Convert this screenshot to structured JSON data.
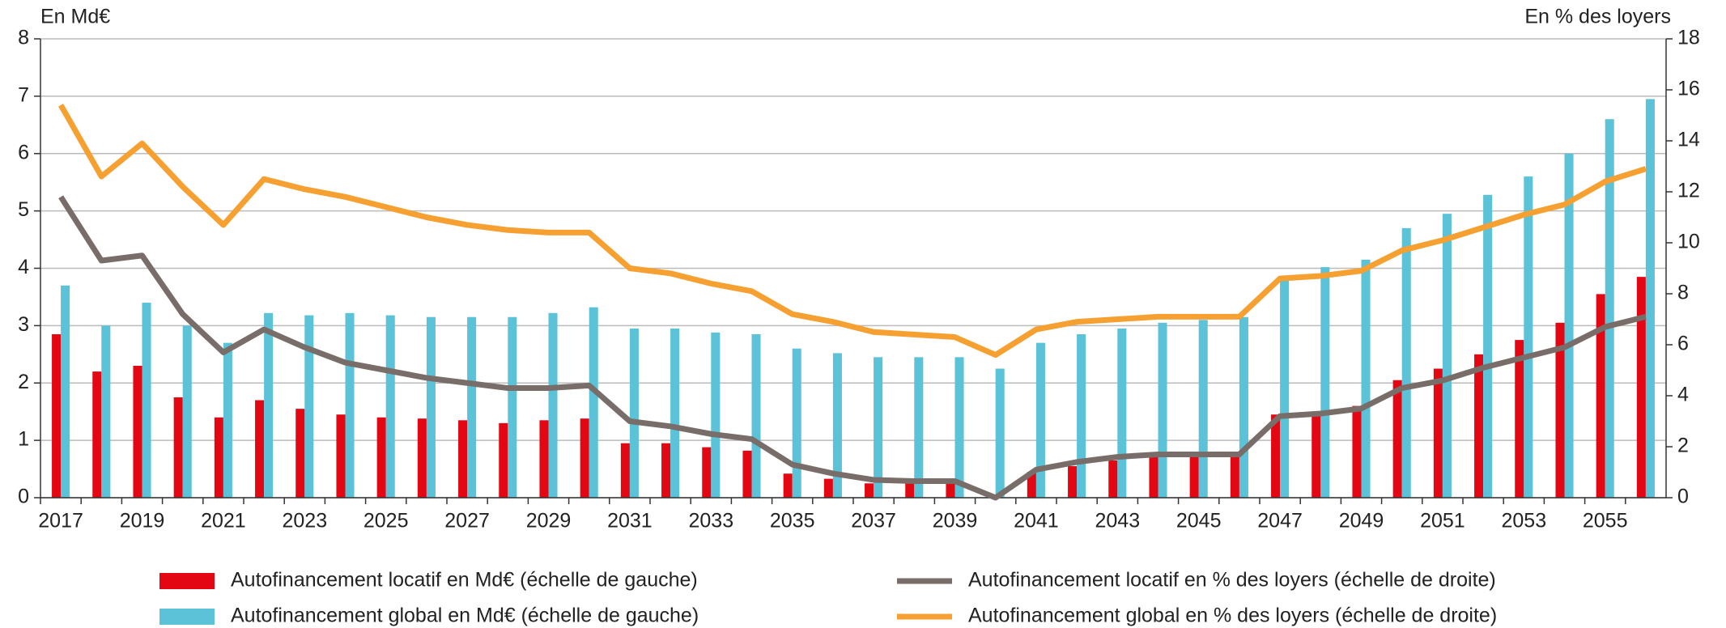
{
  "chart_data": {
    "type": "bar-line",
    "ylabel": "En Md€",
    "y2label": "En % des loyers",
    "categories": [
      "2017",
      null,
      "2019",
      null,
      "2021",
      null,
      "2023",
      null,
      "2025",
      null,
      "2027",
      null,
      "2029",
      null,
      "2031",
      null,
      "2033",
      null,
      "2035",
      null,
      "2037",
      null,
      "2039",
      null,
      "2041",
      null,
      "2043",
      null,
      "2045",
      null,
      "2047",
      null,
      "2049",
      null,
      "2051",
      null,
      "2053",
      null,
      "2055",
      null
    ],
    "series": [
      {
        "name": "Autofinancement locatif en Md€ (échelle de gauche)",
        "type": "bar",
        "color": "#e30613",
        "values": [
          2.85,
          2.2,
          2.3,
          1.75,
          1.4,
          1.7,
          1.55,
          1.45,
          1.4,
          1.38,
          1.35,
          1.3,
          1.35,
          1.38,
          0.95,
          0.95,
          0.88,
          0.82,
          0.42,
          0.33,
          0.25,
          0.25,
          0.25,
          0.02,
          0.45,
          0.55,
          0.65,
          0.72,
          0.72,
          0.75,
          1.45,
          1.5,
          1.6,
          2.05,
          2.25,
          2.5,
          2.75,
          3.05,
          3.55,
          3.85
        ]
      },
      {
        "name": "Autofinancement global en Md€ (échelle de gauche)",
        "type": "bar",
        "color": "#5bc2d8",
        "values": [
          3.7,
          3.0,
          3.4,
          3.0,
          2.7,
          3.22,
          3.18,
          3.22,
          3.18,
          3.15,
          3.15,
          3.15,
          3.22,
          3.32,
          2.95,
          2.95,
          2.88,
          2.85,
          2.6,
          2.52,
          2.45,
          2.45,
          2.45,
          2.25,
          2.7,
          2.85,
          2.95,
          3.05,
          3.1,
          3.15,
          3.85,
          4.02,
          4.15,
          4.7,
          4.95,
          5.28,
          5.6,
          6.0,
          6.6,
          6.95
        ]
      },
      {
        "name": "Autofinancement locatif en  % des loyers (échelle de droite)",
        "type": "line",
        "axis": "y2",
        "color": "#786d69",
        "values": [
          11.8,
          9.3,
          9.5,
          7.2,
          5.7,
          6.6,
          5.9,
          5.3,
          5.0,
          4.7,
          4.5,
          4.3,
          4.3,
          4.4,
          3.0,
          2.8,
          2.5,
          2.3,
          1.3,
          0.95,
          0.7,
          0.65,
          0.65,
          0,
          1.1,
          1.4,
          1.6,
          1.7,
          1.7,
          1.7,
          3.2,
          3.3,
          3.5,
          4.3,
          4.6,
          5.1,
          5.5,
          5.9,
          6.7,
          7.1
        ]
      },
      {
        "name": "Autofinancement global en  % des loyers (échelle de droite)",
        "type": "line",
        "axis": "y2",
        "color": "#f5a031",
        "values": [
          15.4,
          12.6,
          13.9,
          12.2,
          10.7,
          12.5,
          12.1,
          11.8,
          11.4,
          11.0,
          10.7,
          10.5,
          10.4,
          10.4,
          9.0,
          8.8,
          8.4,
          8.1,
          7.2,
          6.9,
          6.5,
          6.4,
          6.3,
          5.6,
          6.6,
          6.9,
          7.0,
          7.1,
          7.1,
          7.1,
          8.6,
          8.7,
          8.9,
          9.7,
          10.1,
          10.6,
          11.1,
          11.5,
          12.4,
          12.9
        ]
      }
    ],
    "ylim": [
      0,
      8
    ],
    "yticks": [
      0,
      1,
      2,
      3,
      4,
      5,
      6,
      7,
      8
    ],
    "y2lim": [
      0,
      18
    ],
    "y2ticks": [
      0,
      2,
      4,
      6,
      8,
      10,
      12,
      14,
      16,
      18
    ],
    "grid": true
  }
}
